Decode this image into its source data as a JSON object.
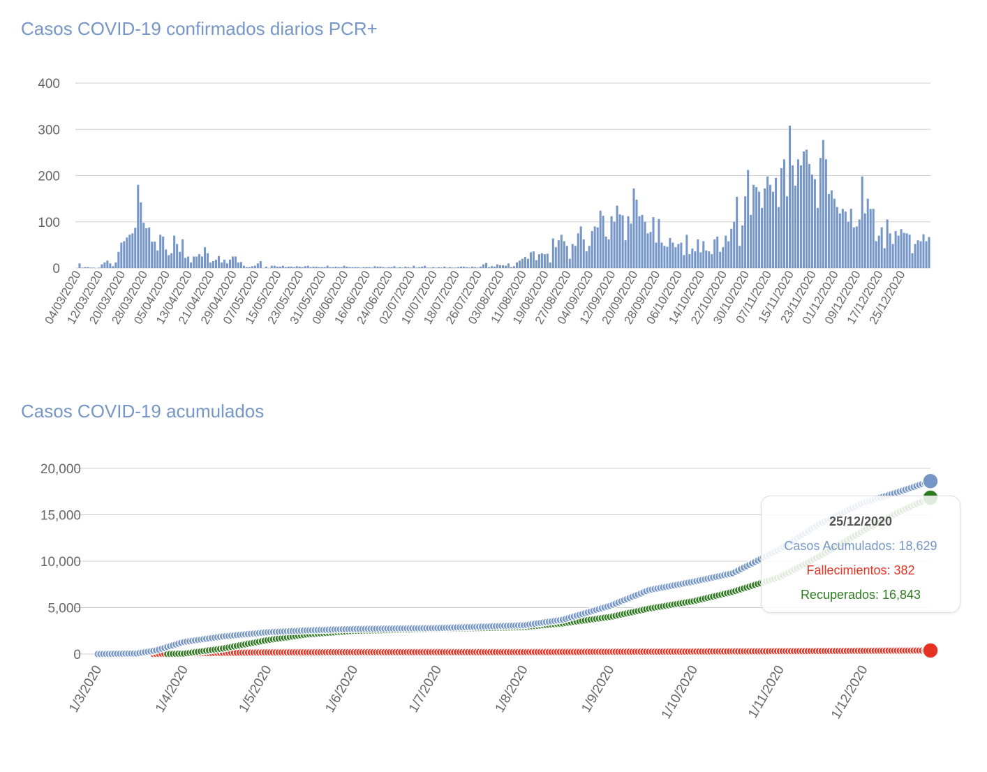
{
  "colors": {
    "cases": "#7596c6",
    "deaths": "#e53223",
    "recovered": "#2d7a1f",
    "grid": "#cfcfcf",
    "tick": "#666666"
  },
  "chart_data": [
    {
      "type": "bar",
      "title": "Casos COVID-19 confirmados diarios PCR+",
      "start_date": "04/03/2020",
      "end_date": "25/12/2020",
      "yticks": [
        "0",
        "100",
        "200",
        "300",
        "400"
      ],
      "ylim": [
        0,
        400
      ],
      "xtick_labels": [
        "04/03/2020",
        "12/03/2020",
        "20/03/2020",
        "28/03/2020",
        "05/04/2020",
        "13/04/2020",
        "21/04/2020",
        "29/04/2020",
        "07/05/2020",
        "15/05/2020",
        "23/05/2020",
        "31/05/2020",
        "08/06/2020",
        "16/06/2020",
        "24/06/2020",
        "02/07/2020",
        "10/07/2020",
        "18/07/2020",
        "26/07/2020",
        "03/08/2020",
        "11/08/2020",
        "19/08/2020",
        "27/08/2020",
        "04/09/2020",
        "12/09/2020",
        "20/09/2020",
        "28/09/2020",
        "06/10/2020",
        "14/10/2020",
        "22/10/2020",
        "30/10/2020",
        "07/11/2020",
        "15/11/2020",
        "23/11/2020",
        "01/12/2020",
        "09/12/2020",
        "17/12/2020",
        "25/12/2020"
      ],
      "values": [
        0,
        10,
        1,
        2,
        2,
        1,
        1,
        0,
        1,
        8,
        12,
        16,
        10,
        4,
        12,
        35,
        55,
        58,
        66,
        72,
        75,
        87,
        180,
        142,
        98,
        86,
        88,
        57,
        57,
        38,
        72,
        68,
        40,
        28,
        32,
        70,
        52,
        35,
        62,
        22,
        25,
        12,
        25,
        25,
        30,
        25,
        45,
        32,
        12,
        15,
        18,
        26,
        12,
        18,
        10,
        18,
        25,
        25,
        12,
        13,
        5,
        2,
        2,
        4,
        5,
        10,
        15,
        0,
        3,
        0,
        5,
        5,
        3,
        3,
        5,
        2,
        3,
        3,
        2,
        4,
        3,
        2,
        4,
        5,
        2,
        3,
        3,
        2,
        2,
        2,
        5,
        2,
        2,
        3,
        2,
        2,
        5,
        3,
        2,
        2,
        2,
        2,
        1,
        2,
        2,
        2,
        1,
        4,
        3,
        3,
        2,
        1,
        2,
        2,
        4,
        1,
        2,
        1,
        3,
        2,
        1,
        5,
        1,
        2,
        3,
        5,
        1,
        1,
        2,
        1,
        2,
        1,
        3,
        1,
        2,
        1,
        1,
        2,
        3,
        3,
        2,
        1,
        3,
        2,
        1,
        3,
        8,
        11,
        2,
        4,
        3,
        8,
        6,
        6,
        5,
        10,
        2,
        4,
        12,
        16,
        20,
        24,
        20,
        34,
        36,
        17,
        30,
        32,
        30,
        31,
        12,
        64,
        45,
        60,
        72,
        58,
        48,
        20,
        52,
        48,
        75,
        90,
        62,
        36,
        48,
        80,
        90,
        88,
        124,
        113,
        68,
        62,
        112,
        100,
        135,
        116,
        114,
        60,
        112,
        96,
        172,
        148,
        112,
        115,
        100,
        75,
        78,
        110,
        55,
        106,
        55,
        48,
        46,
        65,
        55,
        45,
        52,
        55,
        28,
        72,
        30,
        42,
        36,
        62,
        34,
        58,
        38,
        36,
        30,
        62,
        68,
        35,
        45,
        70,
        58,
        85,
        100,
        154,
        48,
        92,
        155,
        212,
        115,
        180,
        175,
        165,
        130,
        172,
        198,
        180,
        165,
        195,
        132,
        216,
        235,
        155,
        308,
        222,
        178,
        235,
        222,
        252,
        256,
        225,
        202,
        192,
        130,
        238,
        277,
        235,
        160,
        168,
        150,
        132,
        118,
        128,
        122,
        100,
        128,
        88,
        90,
        105,
        198,
        118,
        150,
        128,
        128,
        58,
        70,
        88,
        43,
        105,
        75,
        52,
        80,
        70,
        84,
        76,
        75,
        72,
        32,
        52,
        60,
        58,
        73,
        58,
        67
      ]
    },
    {
      "type": "line",
      "title": "Casos COVID-19 acumulados",
      "yticks": [
        "0",
        "5,000",
        "10,000",
        "15,000",
        "20,000"
      ],
      "ylim": [
        0,
        20000
      ],
      "xtick_labels": [
        "1/3/2020",
        "1/4/2020",
        "1/5/2020",
        "1/6/2020",
        "1/7/2020",
        "1/8/2020",
        "1/9/2020",
        "1/10/2020",
        "1/11/2020",
        "1/12/2020"
      ],
      "series": [
        {
          "name": "Casos Acumulados",
          "color": "#7596c6",
          "points": [
            [
              "1/3/2020",
              0
            ],
            [
              "15/3/2020",
              60
            ],
            [
              "22/3/2020",
              400
            ],
            [
              "1/4/2020",
              1300
            ],
            [
              "15/4/2020",
              1900
            ],
            [
              "1/5/2020",
              2350
            ],
            [
              "15/5/2020",
              2550
            ],
            [
              "1/6/2020",
              2700
            ],
            [
              "1/7/2020",
              2800
            ],
            [
              "1/8/2020",
              3100
            ],
            [
              "15/8/2020",
              3700
            ],
            [
              "1/9/2020",
              5200
            ],
            [
              "15/9/2020",
              6900
            ],
            [
              "1/10/2020",
              7800
            ],
            [
              "15/10/2020",
              8700
            ],
            [
              "1/11/2020",
              11300
            ],
            [
              "15/11/2020",
              14000
            ],
            [
              "1/12/2020",
              16300
            ],
            [
              "15/12/2020",
              17600
            ],
            [
              "25/12/2020",
              18629
            ]
          ]
        },
        {
          "name": "Fallecimientos",
          "color": "#e53223",
          "points": [
            [
              "1/3/2020",
              0
            ],
            [
              "20/3/2020",
              0
            ],
            [
              "1/4/2020",
              80
            ],
            [
              "1/5/2020",
              180
            ],
            [
              "1/6/2020",
              200
            ],
            [
              "1/8/2020",
              210
            ],
            [
              "1/9/2020",
              240
            ],
            [
              "1/10/2020",
              270
            ],
            [
              "1/11/2020",
              310
            ],
            [
              "1/12/2020",
              350
            ],
            [
              "25/12/2020",
              382
            ]
          ]
        },
        {
          "name": "Recuperados",
          "color": "#2d7a1f",
          "points": [
            [
              "1/3/2020",
              0
            ],
            [
              "25/3/2020",
              0
            ],
            [
              "1/4/2020",
              50
            ],
            [
              "15/4/2020",
              600
            ],
            [
              "1/5/2020",
              1500
            ],
            [
              "15/5/2020",
              2100
            ],
            [
              "1/6/2020",
              2500
            ],
            [
              "1/7/2020",
              2700
            ],
            [
              "1/8/2020",
              2900
            ],
            [
              "15/8/2020",
              3300
            ],
            [
              "1/9/2020",
              4000
            ],
            [
              "15/9/2020",
              4900
            ],
            [
              "1/10/2020",
              5700
            ],
            [
              "15/10/2020",
              6700
            ],
            [
              "1/11/2020",
              8300
            ],
            [
              "15/11/2020",
              10500
            ],
            [
              "1/12/2020",
              13300
            ],
            [
              "15/12/2020",
              15500
            ],
            [
              "25/12/2020",
              16843
            ]
          ]
        }
      ]
    }
  ],
  "tooltip": {
    "date": "25/12/2020",
    "cases_text": "Casos Acumulados: 18,629",
    "deaths_text": "Fallecimientos: 382",
    "recovered_text": "Recuperados: 16,843"
  }
}
